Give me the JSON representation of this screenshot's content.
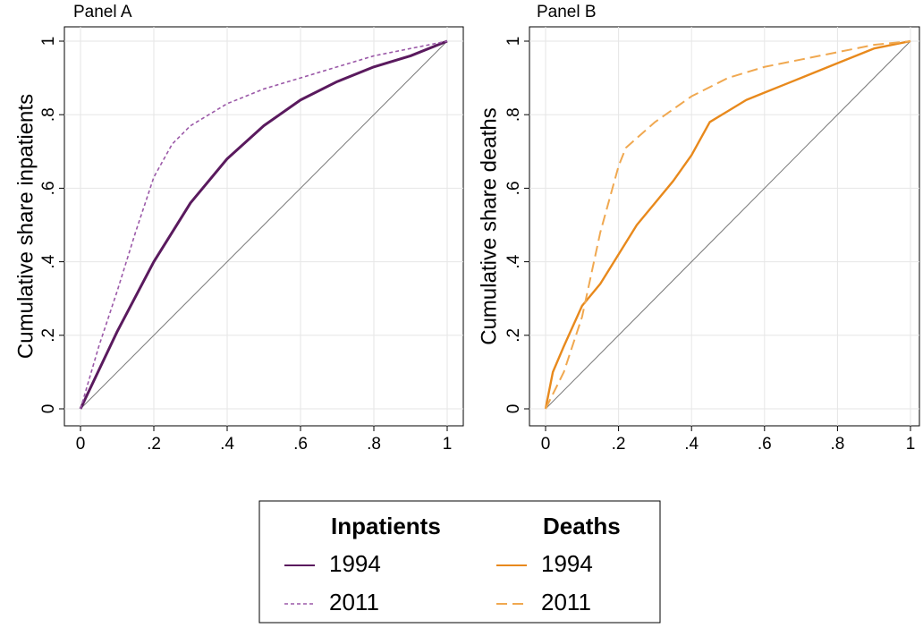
{
  "chart_data": [
    {
      "type": "line",
      "title": "Panel A",
      "ylabel": "Cumulative share inpatients",
      "legend_title": "Inpatients",
      "xlim": [
        0,
        1
      ],
      "ylim": [
        0,
        1
      ],
      "xticks": [
        0,
        {
          "value": 0.2,
          "label": ".2"
        },
        {
          "value": 0.4,
          "label": ".4"
        },
        {
          "value": 0.6,
          "label": ".6"
        },
        {
          "value": 0.8,
          "label": ".8"
        },
        1
      ],
      "yticks": [
        0,
        {
          "value": 0.2,
          "label": ".2"
        },
        {
          "value": 0.4,
          "label": ".4"
        },
        {
          "value": 0.6,
          "label": ".6"
        },
        {
          "value": 0.8,
          "label": ".8"
        },
        1
      ],
      "grid": true,
      "series": [
        {
          "name": "1994",
          "color": "#5a1a5e",
          "style": "solid",
          "width": 3,
          "x": [
            0,
            0.1,
            0.2,
            0.3,
            0.4,
            0.5,
            0.6,
            0.7,
            0.8,
            0.9,
            1
          ],
          "values": [
            0,
            0.21,
            0.4,
            0.56,
            0.68,
            0.77,
            0.84,
            0.89,
            0.93,
            0.96,
            1
          ]
        },
        {
          "name": "2011",
          "color": "#9b59a8",
          "style": "short-dash",
          "width": 1.6,
          "x": [
            0,
            0.05,
            0.1,
            0.15,
            0.2,
            0.25,
            0.3,
            0.4,
            0.5,
            0.6,
            0.7,
            0.8,
            0.9,
            1
          ],
          "values": [
            0,
            0.17,
            0.32,
            0.48,
            0.63,
            0.72,
            0.77,
            0.83,
            0.87,
            0.9,
            0.93,
            0.96,
            0.98,
            1
          ]
        }
      ]
    },
    {
      "type": "line",
      "title": "Panel B",
      "ylabel": "Cumulative share deaths",
      "legend_title": "Deaths",
      "xlim": [
        0,
        1
      ],
      "ylim": [
        0,
        1
      ],
      "xticks": [
        0,
        {
          "value": 0.2,
          "label": ".2"
        },
        {
          "value": 0.4,
          "label": ".4"
        },
        {
          "value": 0.6,
          "label": ".6"
        },
        {
          "value": 0.8,
          "label": ".8"
        },
        1
      ],
      "yticks": [
        0,
        {
          "value": 0.2,
          "label": ".2"
        },
        {
          "value": 0.4,
          "label": ".4"
        },
        {
          "value": 0.6,
          "label": ".6"
        },
        {
          "value": 0.8,
          "label": ".8"
        },
        1
      ],
      "grid": true,
      "series": [
        {
          "name": "1994",
          "color": "#e8891c",
          "style": "solid",
          "width": 2.4,
          "x": [
            0,
            0.02,
            0.05,
            0.1,
            0.15,
            0.2,
            0.25,
            0.3,
            0.35,
            0.4,
            0.45,
            0.5,
            0.55,
            0.6,
            0.65,
            0.7,
            0.8,
            0.9,
            1
          ],
          "values": [
            0,
            0.1,
            0.17,
            0.28,
            0.34,
            0.42,
            0.5,
            0.56,
            0.62,
            0.69,
            0.78,
            0.81,
            0.84,
            0.86,
            0.88,
            0.9,
            0.94,
            0.98,
            1
          ]
        },
        {
          "name": "2011",
          "color": "#f0a850",
          "style": "long-dash",
          "width": 2,
          "x": [
            0,
            0.05,
            0.1,
            0.15,
            0.2,
            0.22,
            0.3,
            0.4,
            0.5,
            0.6,
            0.7,
            0.8,
            0.9,
            1
          ],
          "values": [
            0,
            0.1,
            0.25,
            0.48,
            0.66,
            0.71,
            0.78,
            0.85,
            0.9,
            0.93,
            0.95,
            0.97,
            0.99,
            1
          ]
        }
      ]
    }
  ]
}
